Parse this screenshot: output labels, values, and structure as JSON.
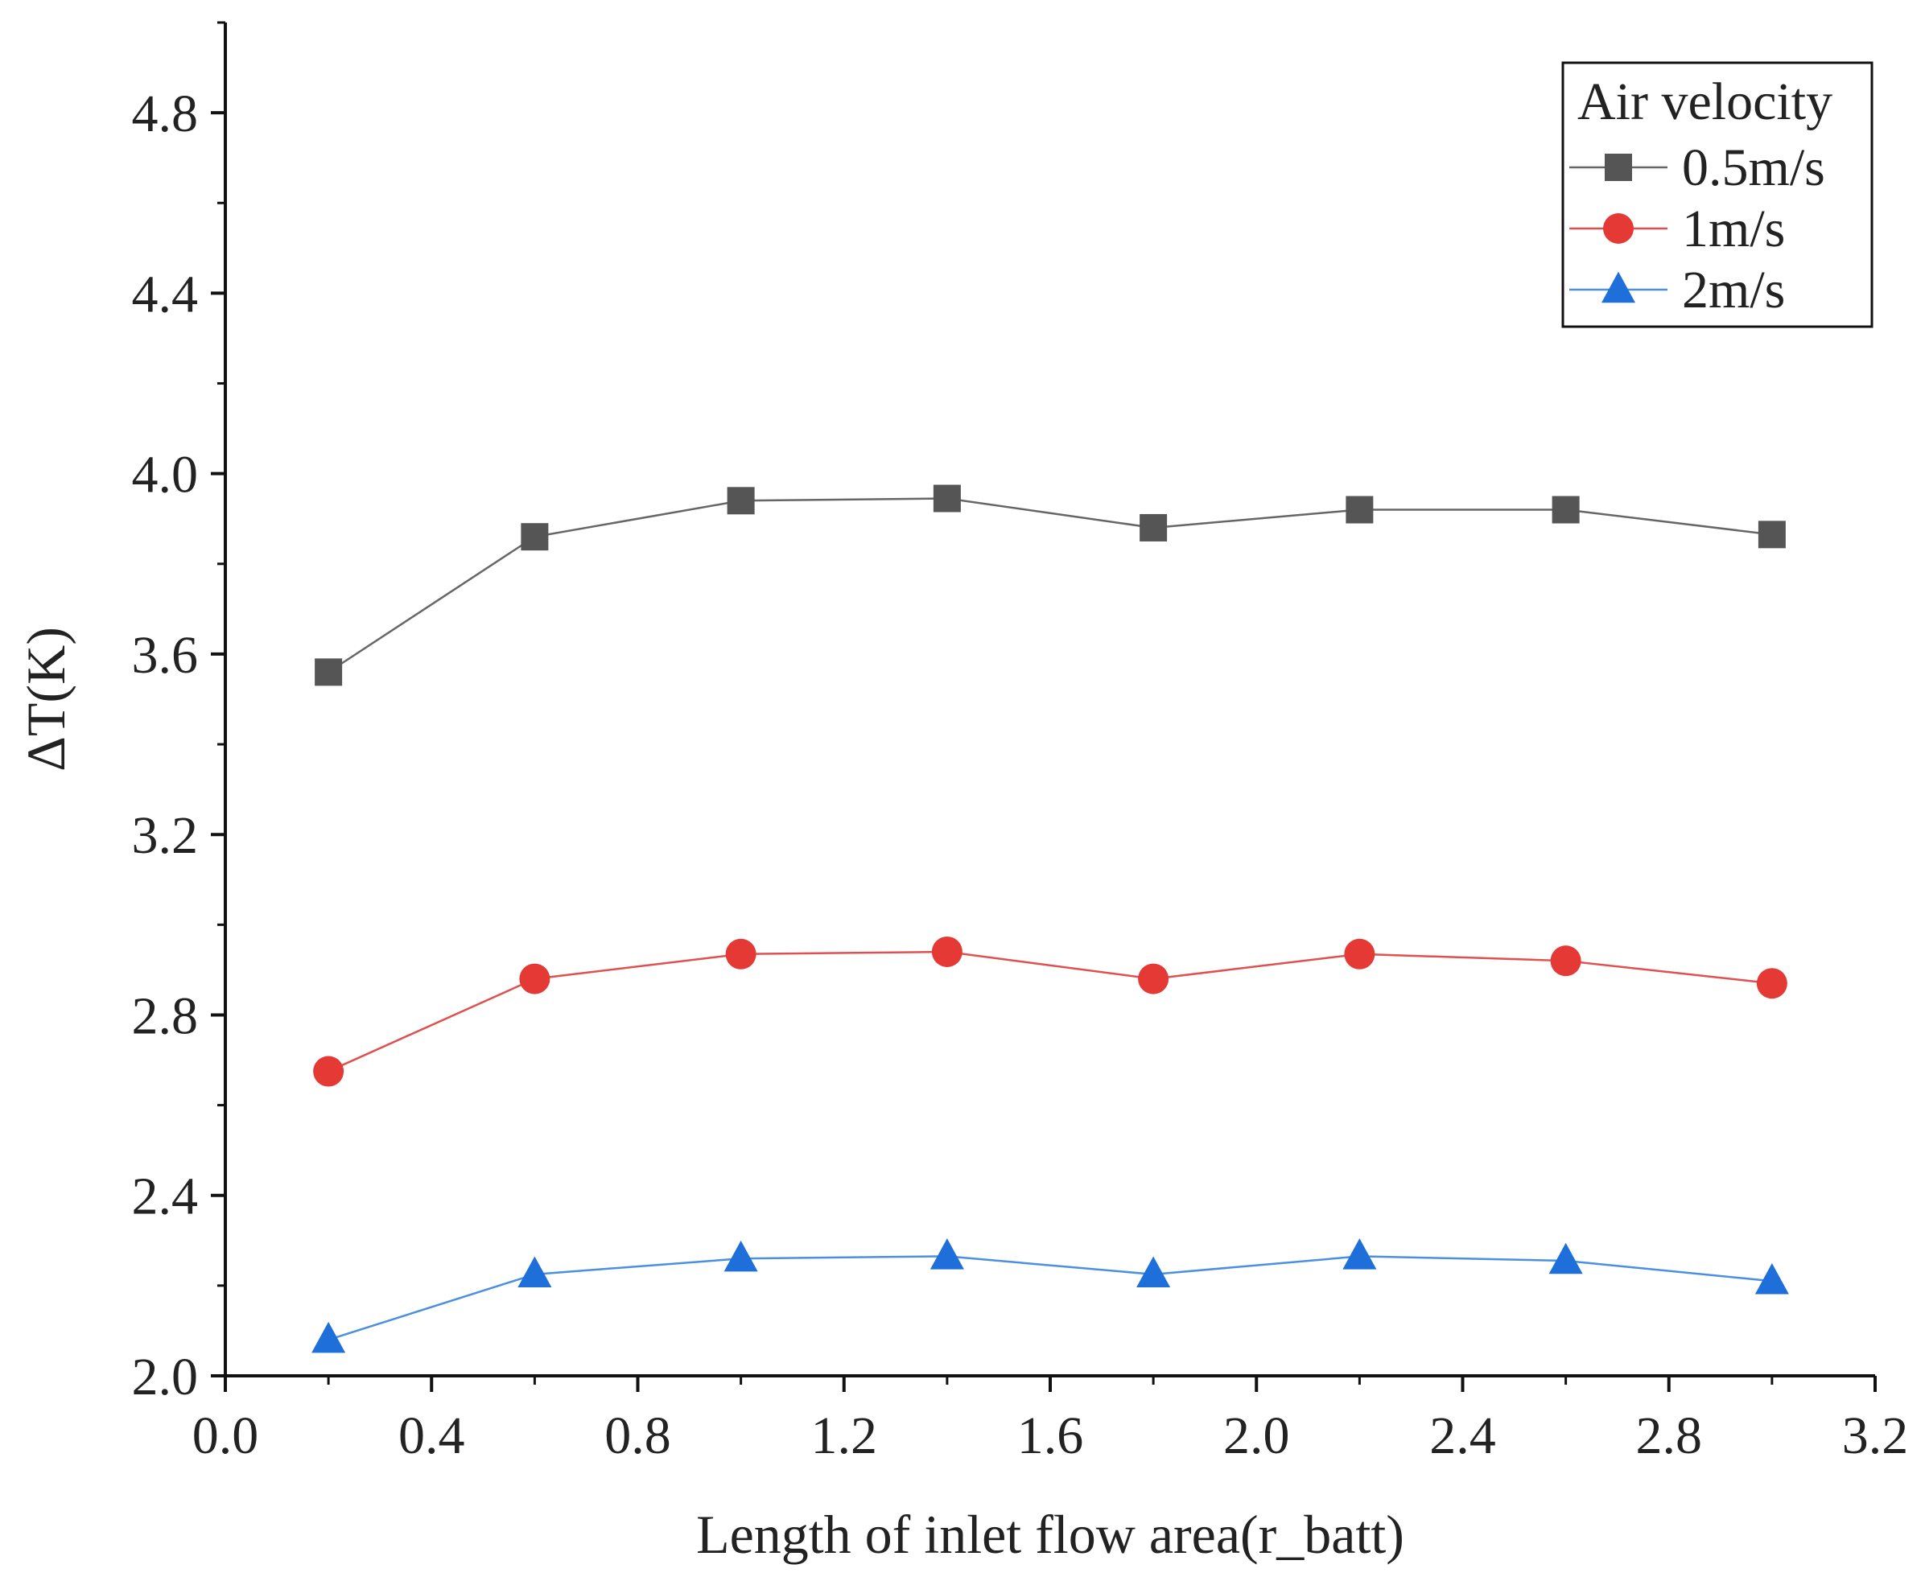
{
  "chart_data": {
    "type": "line",
    "title": "",
    "xlabel": "Length of inlet flow area(r_batt)",
    "ylabel": "ΔT(K)",
    "xlim": [
      0.0,
      3.2
    ],
    "ylim": [
      2.0,
      5.0
    ],
    "xticks": [
      0.0,
      0.4,
      0.8,
      1.2,
      1.6,
      2.0,
      2.4,
      2.8,
      3.2
    ],
    "xtick_labels": [
      "0.0",
      "0.4",
      "0.8",
      "1.2",
      "1.6",
      "2.0",
      "2.4",
      "2.8",
      "3.2"
    ],
    "yticks": [
      2.0,
      2.4,
      2.8,
      3.2,
      3.6,
      4.0,
      4.4,
      4.8
    ],
    "ytick_labels": [
      "2.0",
      "2.4",
      "2.8",
      "3.2",
      "3.6",
      "4.0",
      "4.4",
      "4.8"
    ],
    "grid": false,
    "legend": {
      "title": "Air velocity",
      "placement": "top-right"
    },
    "x": [
      0.2,
      0.6,
      1.0,
      1.4,
      1.8,
      2.2,
      2.6,
      3.0
    ],
    "series": [
      {
        "name": "0.5m/s",
        "marker": "square",
        "color": "#555555",
        "line_color": "#666666",
        "values": [
          3.56,
          3.86,
          3.94,
          3.945,
          3.88,
          3.92,
          3.92,
          3.865
        ]
      },
      {
        "name": "1m/s",
        "marker": "circle",
        "color": "#e53935",
        "line_color": "#e05050",
        "values": [
          2.675,
          2.88,
          2.935,
          2.94,
          2.88,
          2.935,
          2.92,
          2.87
        ]
      },
      {
        "name": "2m/s",
        "marker": "triangle",
        "color": "#1e6fd9",
        "line_color": "#4a8fe0",
        "values": [
          2.08,
          2.225,
          2.26,
          2.265,
          2.225,
          2.265,
          2.255,
          2.21
        ]
      }
    ]
  }
}
